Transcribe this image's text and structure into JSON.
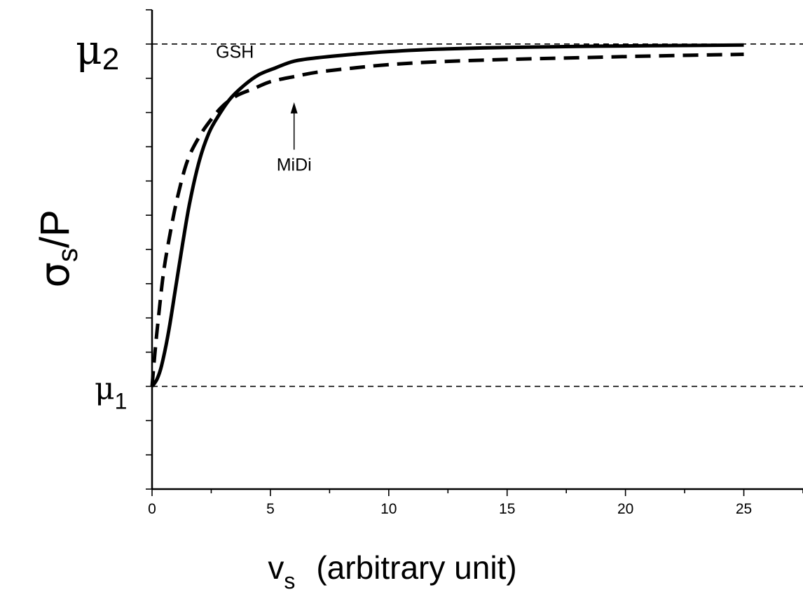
{
  "chart_data": {
    "type": "line",
    "xlabel_symbol": "v",
    "xlabel_sub": "s",
    "xlabel_text": "(arbitrary unit)",
    "ylabel_symbol": "σ",
    "ylabel_sub": "s",
    "ylabel_rest": "/P",
    "xlim": [
      0,
      27.5
    ],
    "ylim": [
      -0.3,
      1.1
    ],
    "x_ticks": [
      0,
      5,
      10,
      15,
      20,
      25
    ],
    "x_tick_labels": [
      "0",
      "5",
      "10",
      "15",
      "20",
      "25"
    ],
    "x_minor_step": 2.5,
    "y_minor_step": 0.1,
    "reference_lines": [
      {
        "y": 1.0,
        "label": "μ",
        "sub": "2"
      },
      {
        "y": 0.0,
        "label": "μ",
        "sub": "1"
      }
    ],
    "series": [
      {
        "name": "GSH",
        "style": "solid",
        "x": [
          0,
          0.2,
          0.4,
          0.7,
          1.0,
          1.3,
          1.6,
          2.0,
          2.4,
          2.8,
          3.3,
          3.9,
          4.5,
          5.2,
          6.0,
          7.0,
          8.5,
          10,
          12,
          15,
          18,
          21,
          25
        ],
        "y": [
          0,
          0.02,
          0.06,
          0.16,
          0.29,
          0.42,
          0.54,
          0.66,
          0.74,
          0.79,
          0.84,
          0.88,
          0.91,
          0.93,
          0.95,
          0.96,
          0.97,
          0.978,
          0.985,
          0.99,
          0.993,
          0.995,
          0.997
        ]
      },
      {
        "name": "MiDi",
        "style": "dashed",
        "x": [
          0,
          0.15,
          0.3,
          0.5,
          0.8,
          1.1,
          1.5,
          2.0,
          2.5,
          3.0,
          3.6,
          4.3,
          5.0,
          6.0,
          7.0,
          8.5,
          10,
          12,
          15,
          18,
          21,
          25
        ],
        "y": [
          0,
          0.12,
          0.22,
          0.34,
          0.46,
          0.56,
          0.66,
          0.73,
          0.78,
          0.82,
          0.85,
          0.87,
          0.89,
          0.905,
          0.918,
          0.93,
          0.94,
          0.948,
          0.955,
          0.96,
          0.965,
          0.97
        ]
      }
    ],
    "annotations": [
      {
        "text": "GSH",
        "x": 3.5,
        "y": 0.96
      },
      {
        "text": "MiDi",
        "x": 6.0,
        "y": 0.63,
        "arrow_to": [
          6.0,
          0.83
        ]
      }
    ]
  }
}
